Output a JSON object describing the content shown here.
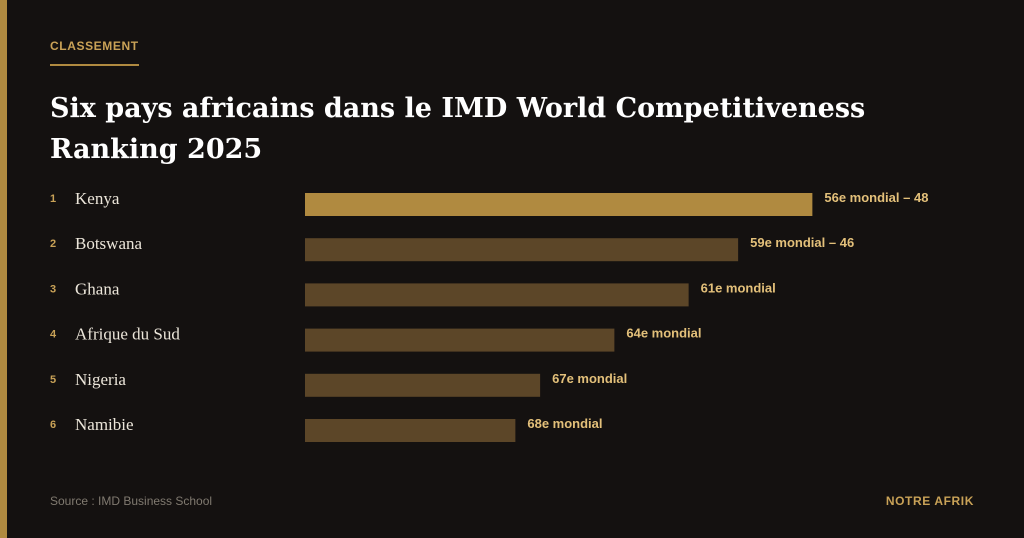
{
  "header": {
    "kicker": "CLASSEMENT",
    "title": "Six pays africains dans le IMD World Competitiveness Ranking 2025"
  },
  "chart_data": {
    "type": "bar",
    "orientation": "horizontal",
    "title": "Six pays africains dans le IMD World Competitiveness Ranking 2025",
    "xlabel": "",
    "ylabel": "",
    "grid": false,
    "legend": "none",
    "ranks": [
      "1",
      "2",
      "3",
      "4",
      "5",
      "6"
    ],
    "categories": [
      "Kenya",
      "Botswana",
      "Ghana",
      "Afrique du Sud",
      "Nigeria",
      "Namibie"
    ],
    "values": [
      56,
      59,
      61,
      64,
      67,
      68
    ],
    "labels": [
      "56e mondial – 48",
      "59e mondial – 46",
      "61e mondial",
      "64e mondial",
      "67e mondial",
      "68e mondial"
    ],
    "highlight_color": "#b08a40",
    "bar_color": "#5c4628"
  },
  "footer": {
    "source": "Source : IMD Business School",
    "brand": "NOTRE AFRIK"
  }
}
